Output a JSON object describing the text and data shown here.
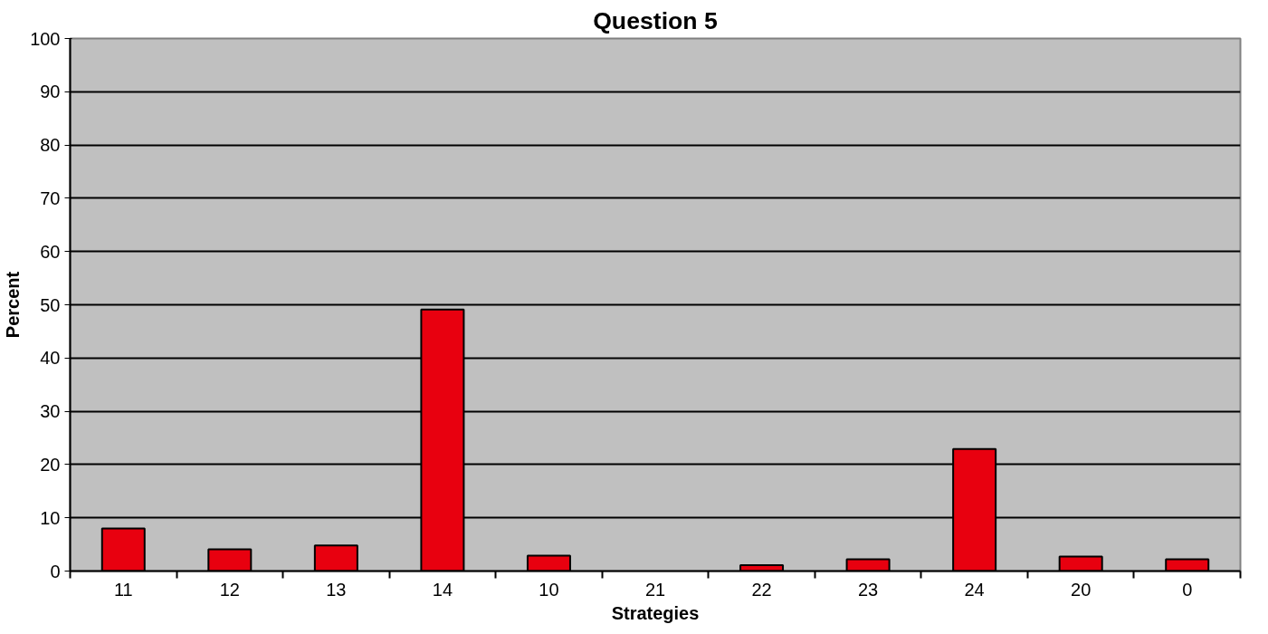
{
  "chart_data": {
    "type": "bar",
    "title": "Question 5",
    "xlabel": "Strategies",
    "ylabel": "Percent",
    "categories": [
      "11",
      "12",
      "13",
      "14",
      "10",
      "21",
      "22",
      "23",
      "24",
      "20",
      "0"
    ],
    "values": [
      8.0,
      4.1,
      4.8,
      49.1,
      2.9,
      0,
      1.1,
      2.2,
      22.9,
      2.7,
      2.2
    ],
    "color": "#e8000f",
    "ylim": [
      0,
      100
    ],
    "yticks": [
      0,
      10,
      20,
      30,
      40,
      50,
      60,
      70,
      80,
      90,
      100
    ],
    "grid": "y"
  }
}
